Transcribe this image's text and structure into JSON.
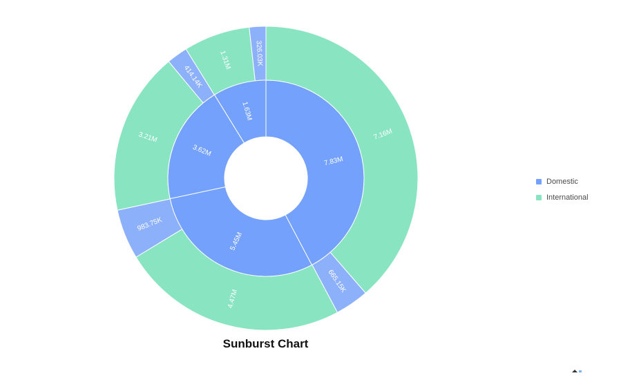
{
  "chart_data": {
    "type": "sunburst",
    "title": "Sunburst Chart",
    "legend": {
      "placement": "right",
      "entries": [
        {
          "name": "Domestic",
          "color": "#73a1fb"
        },
        {
          "name": "International",
          "color": "#89e5c1"
        }
      ]
    },
    "inner_ring": [
      {
        "label": "7.83M",
        "value": 7830000,
        "series": "Domestic"
      },
      {
        "label": "5.45M",
        "value": 5450000,
        "series": "Domestic"
      },
      {
        "label": "3.62M",
        "value": 3620000,
        "series": "Domestic"
      },
      {
        "label": "1.63M",
        "value": 1630000,
        "series": "Domestic"
      }
    ],
    "outer_ring": [
      {
        "label": "7.16M",
        "value": 7160000,
        "series": "International"
      },
      {
        "label": "665.15K",
        "value": 665150,
        "series": "Domestic"
      },
      {
        "label": "4.47M",
        "value": 4470000,
        "series": "International"
      },
      {
        "label": "983.75K",
        "value": 983750,
        "series": "Domestic"
      },
      {
        "label": "3.21M",
        "value": 3210000,
        "series": "International"
      },
      {
        "label": "414.14K",
        "value": 414140,
        "series": "Domestic"
      },
      {
        "label": "1.31M",
        "value": 1310000,
        "series": "International"
      },
      {
        "label": "326.03K",
        "value": 326030,
        "series": "Domestic"
      }
    ]
  }
}
